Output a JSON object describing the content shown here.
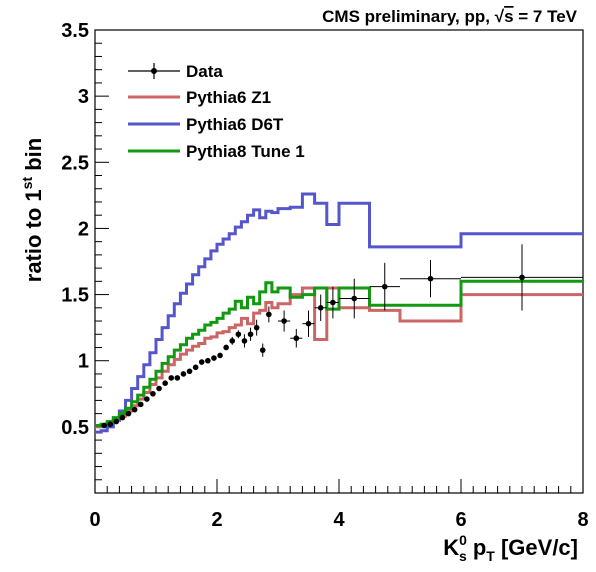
{
  "chart_data": {
    "type": "line",
    "title": "CMS preliminary, pp, √s = 7 TeV",
    "title_parts": {
      "prefix": "CMS preliminary, pp, ",
      "sqrt": "√",
      "s": "s",
      "suffix": " = 7 TeV"
    },
    "xlabel": "K⁰s pT [GeV/c]",
    "xlabel_parts": {
      "k": "K",
      "sup": "0",
      "sub": "s",
      "p": " p",
      "psub": "T",
      "rest": " [GeV/c]"
    },
    "ylabel": "ratio to 1st bin",
    "ylabel_parts": {
      "main": "ratio to 1",
      "sup": "st",
      "rest": " bin"
    },
    "xlim": [
      0,
      8
    ],
    "ylim": [
      0,
      3.5
    ],
    "x_ticks": [
      "0",
      "2",
      "4",
      "6",
      "8"
    ],
    "y_ticks": [
      "0.5",
      "1",
      "1.5",
      "2",
      "2.5",
      "3",
      "3.5"
    ],
    "legend_position": "top-left",
    "legend": [
      "Data",
      "Pythia6 Z1",
      "Pythia6 D6T",
      "Pythia8 Tune 1"
    ],
    "colors": {
      "data": "#000000",
      "z1": "#cc6666",
      "d6t": "#5555cc",
      "p8": "#119911"
    },
    "bin_edges": [
      0,
      0.1,
      0.2,
      0.3,
      0.4,
      0.5,
      0.6,
      0.7,
      0.8,
      0.9,
      1.0,
      1.1,
      1.2,
      1.3,
      1.4,
      1.5,
      1.6,
      1.7,
      1.8,
      1.9,
      2.0,
      2.1,
      2.2,
      2.3,
      2.4,
      2.5,
      2.6,
      2.7,
      2.8,
      2.9,
      3.0,
      3.2,
      3.4,
      3.6,
      3.8,
      4.0,
      4.5,
      5.0,
      6.0,
      8.0
    ],
    "series": [
      {
        "name": "Pythia6 Z1",
        "color": "#cc6666",
        "values": [
          0.5,
          0.51,
          0.53,
          0.55,
          0.58,
          0.62,
          0.66,
          0.71,
          0.76,
          0.82,
          0.87,
          0.92,
          0.97,
          1.01,
          1.05,
          1.08,
          1.11,
          1.13,
          1.17,
          1.18,
          1.21,
          1.22,
          1.25,
          1.27,
          1.32,
          1.28,
          1.36,
          1.38,
          1.44,
          1.4,
          1.43,
          1.5,
          1.55,
          1.16,
          1.55,
          1.4,
          1.38,
          1.3,
          1.5
        ]
      },
      {
        "name": "Pythia6 D6T",
        "color": "#5555cc",
        "values": [
          0.46,
          0.47,
          0.5,
          0.55,
          0.62,
          0.7,
          0.79,
          0.88,
          0.97,
          1.06,
          1.16,
          1.25,
          1.34,
          1.43,
          1.51,
          1.58,
          1.65,
          1.71,
          1.77,
          1.83,
          1.88,
          1.92,
          1.96,
          2.01,
          2.05,
          2.1,
          2.14,
          2.08,
          2.13,
          2.12,
          2.15,
          2.16,
          2.26,
          2.19,
          2.03,
          2.19,
          1.86,
          1.86,
          1.96
        ]
      },
      {
        "name": "Pythia8 Tune 1",
        "color": "#119911",
        "values": [
          0.51,
          0.52,
          0.54,
          0.57,
          0.6,
          0.64,
          0.69,
          0.74,
          0.8,
          0.86,
          0.92,
          0.98,
          1.03,
          1.08,
          1.12,
          1.17,
          1.2,
          1.23,
          1.27,
          1.29,
          1.32,
          1.36,
          1.39,
          1.45,
          1.4,
          1.48,
          1.43,
          1.52,
          1.59,
          1.52,
          1.55,
          1.48,
          1.5,
          1.55,
          1.39,
          1.55,
          1.42,
          1.42,
          1.6
        ]
      }
    ],
    "data_points": {
      "name": "Data",
      "x": [
        0.15,
        0.25,
        0.35,
        0.45,
        0.55,
        0.65,
        0.75,
        0.85,
        0.95,
        1.05,
        1.15,
        1.25,
        1.35,
        1.45,
        1.55,
        1.65,
        1.75,
        1.85,
        1.95,
        2.05,
        2.15,
        2.25,
        2.35,
        2.45,
        2.55,
        2.65,
        2.75,
        2.85,
        3.1,
        3.3,
        3.5,
        3.7,
        3.9,
        4.25,
        4.75,
        5.5,
        7.0
      ],
      "y": [
        0.51,
        0.52,
        0.54,
        0.57,
        0.6,
        0.63,
        0.67,
        0.71,
        0.75,
        0.79,
        0.83,
        0.87,
        0.87,
        0.9,
        0.92,
        0.95,
        0.99,
        1.0,
        1.02,
        1.04,
        1.1,
        1.15,
        1.2,
        1.15,
        1.2,
        1.25,
        1.08,
        1.35,
        1.3,
        1.17,
        1.28,
        1.4,
        1.44,
        1.47,
        1.56,
        1.62,
        1.63
      ],
      "xerr": [
        0,
        0,
        0,
        0,
        0,
        0,
        0,
        0,
        0,
        0,
        0,
        0,
        0,
        0,
        0,
        0,
        0,
        0,
        0,
        0,
        0,
        0,
        0,
        0,
        0,
        0,
        0,
        0,
        0.1,
        0.1,
        0.1,
        0.1,
        0.1,
        0.25,
        0.25,
        0.5,
        1.0
      ],
      "yerr": [
        0.01,
        0.01,
        0.01,
        0.01,
        0.01,
        0.01,
        0.01,
        0.01,
        0.01,
        0.01,
        0.01,
        0.01,
        0.01,
        0.01,
        0.02,
        0.02,
        0.02,
        0.02,
        0.02,
        0.02,
        0.02,
        0.03,
        0.03,
        0.05,
        0.05,
        0.06,
        0.05,
        0.06,
        0.08,
        0.07,
        0.1,
        0.1,
        0.12,
        0.15,
        0.18,
        0.14,
        0.25
      ]
    }
  }
}
